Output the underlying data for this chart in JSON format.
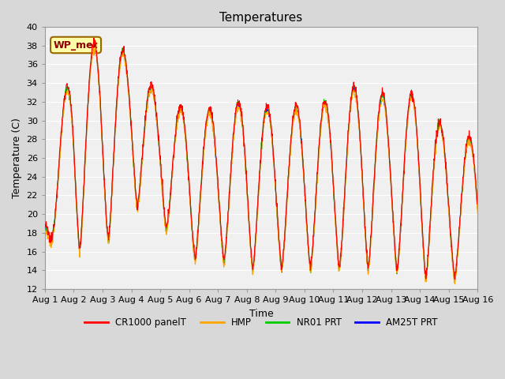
{
  "title": "Temperatures",
  "xlabel": "Time",
  "ylabel": "Temperature (C)",
  "annotation": "WP_met",
  "ylim": [
    12,
    40
  ],
  "yticks": [
    12,
    14,
    16,
    18,
    20,
    22,
    24,
    26,
    28,
    30,
    32,
    34,
    36,
    38,
    40
  ],
  "fig_bg": "#d8d8d8",
  "plot_bg": "#f0f0f0",
  "legend_entries": [
    "CR1000 panelT",
    "HMP",
    "NR01 PRT",
    "AM25T PRT"
  ],
  "legend_colors": [
    "#ff0000",
    "#ffa500",
    "#00cc00",
    "#0000ff"
  ],
  "grid_color": "#ffffff",
  "title_fontsize": 11,
  "label_fontsize": 9,
  "tick_fontsize": 8,
  "line_width": 0.8,
  "n_days": 15,
  "samples_per_hour": 4
}
